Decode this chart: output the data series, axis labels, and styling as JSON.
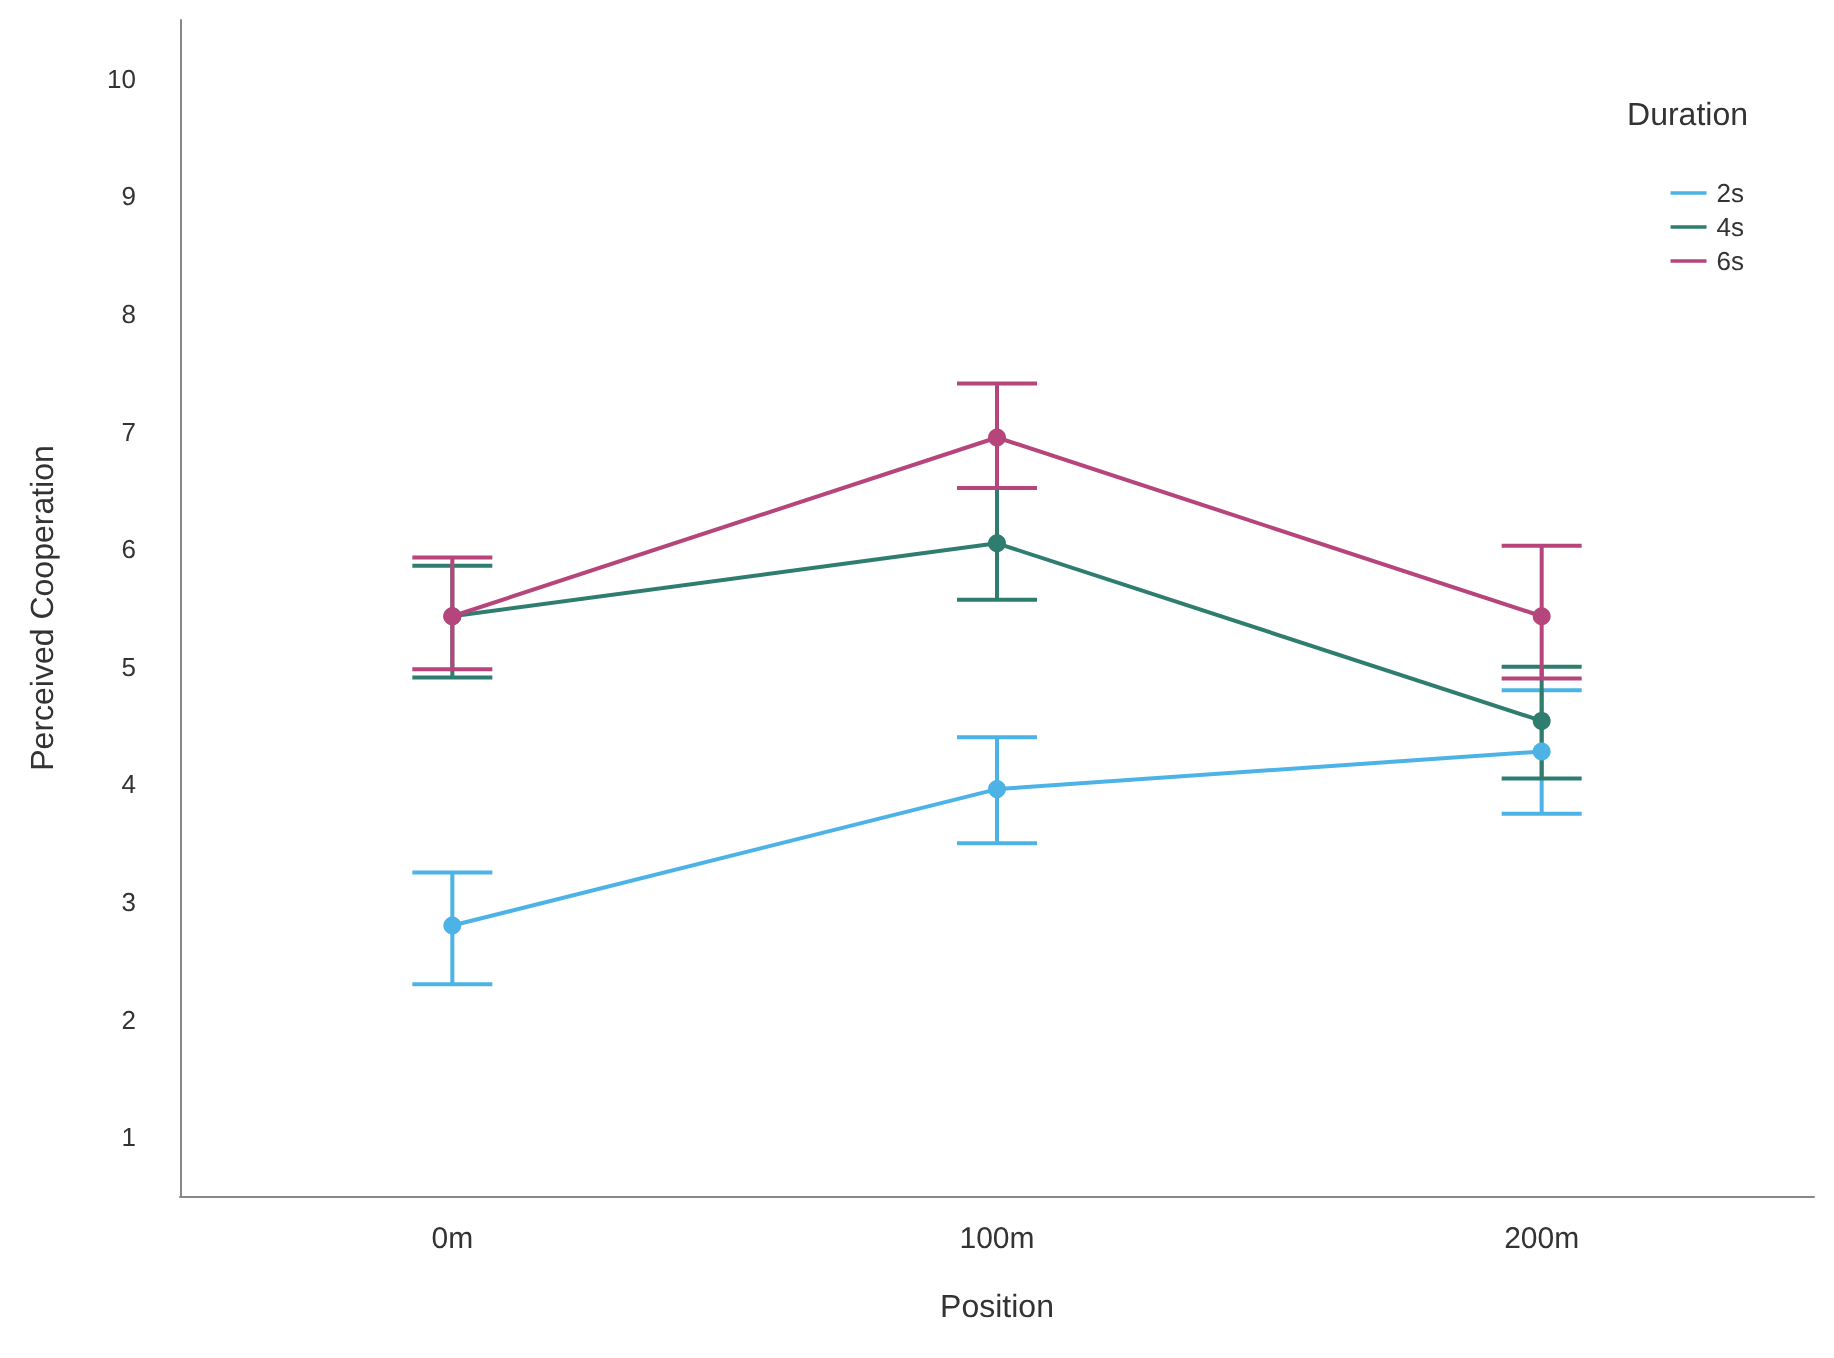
{
  "chart_data": {
    "type": "line",
    "xlabel": "Position",
    "ylabel": "Perceived Cooperation",
    "legend_title": "Duration",
    "categories": [
      "0m",
      "100m",
      "200m"
    ],
    "series": [
      {
        "name": "2s",
        "color": "#4db3e6",
        "values": [
          2.8,
          3.96,
          4.28
        ],
        "errors": [
          [
            2.3,
            3.25
          ],
          [
            3.5,
            4.4
          ],
          [
            3.75,
            4.8
          ]
        ]
      },
      {
        "name": "4s",
        "color": "#2e7d6e",
        "values": [
          5.43,
          6.05,
          4.54
        ],
        "errors": [
          [
            4.91,
            5.86
          ],
          [
            5.57,
            6.52
          ],
          [
            4.05,
            5.0
          ]
        ]
      },
      {
        "name": "6s",
        "color": "#b5457a",
        "values": [
          5.43,
          6.95,
          5.43
        ],
        "errors": [
          [
            4.98,
            5.93
          ],
          [
            6.52,
            7.41
          ],
          [
            4.9,
            6.03
          ]
        ]
      }
    ],
    "ylim": [
      0.5,
      10.5
    ],
    "yticks": [
      1,
      2,
      3,
      4,
      5,
      6,
      7,
      8,
      9,
      10
    ],
    "grid": false,
    "legend": "top right",
    "marker": "circle",
    "line_style": "solid"
  }
}
